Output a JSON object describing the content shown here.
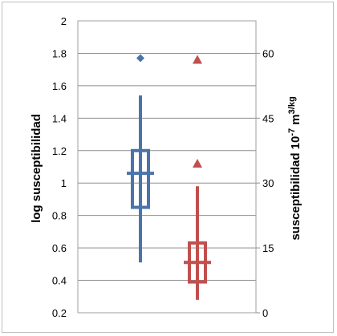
{
  "chart_data": {
    "type": "box",
    "ylabel_left": "log susceptibilidad",
    "ylabel_right": {
      "prefix": "susceptibilidad 10",
      "exp": "-7",
      "mid": " m",
      "exp2": "3/kg"
    },
    "y_left": {
      "min": 0.2,
      "max": 2.0,
      "ticks": [
        "0.2",
        "0.4",
        "0.6",
        "0.8",
        "1",
        "1.2",
        "1.4",
        "1.6",
        "1.8",
        "2"
      ]
    },
    "y_right": {
      "min": 0,
      "max": 67.5,
      "ticks": [
        "0",
        "15",
        "30",
        "45",
        "60"
      ]
    },
    "grid": true,
    "series": [
      {
        "color": "#4a74aa",
        "whisker_low": 0.51,
        "q1": 0.85,
        "median": 1.06,
        "q3": 1.2,
        "whisker_high": 1.54,
        "outlier": 1.77,
        "outlier_marker": "diamond"
      },
      {
        "color": "#c0504d",
        "whisker_low": 0.28,
        "q1": 0.39,
        "median": 0.51,
        "q3": 0.63,
        "whisker_high": 0.98,
        "outliers": [
          1.76,
          1.12
        ],
        "outlier_marker": "triangle"
      }
    ]
  }
}
